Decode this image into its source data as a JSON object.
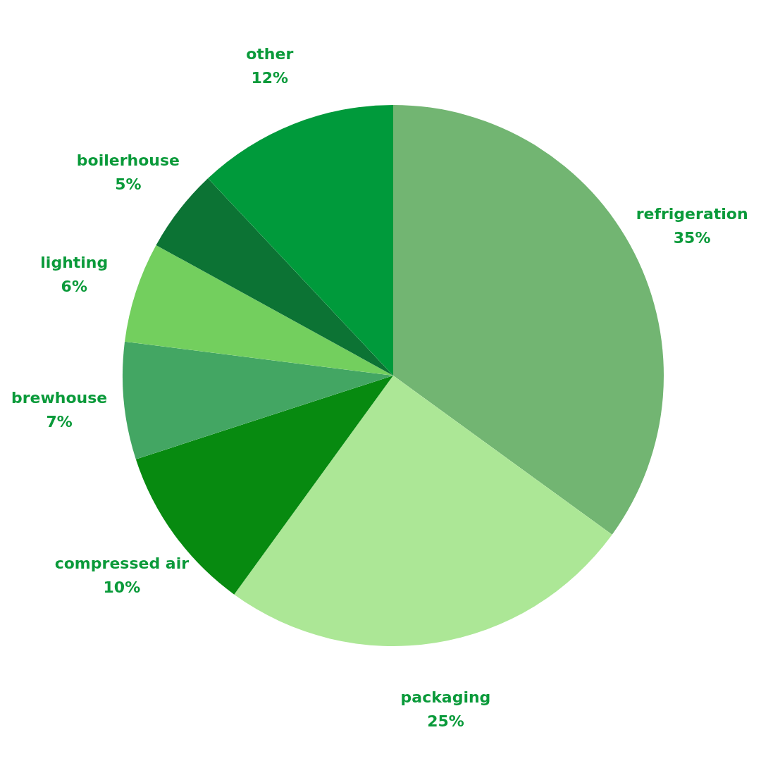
{
  "chart_data": {
    "type": "pie",
    "categories": [
      "refrigeration",
      "packaging",
      "compressed air",
      "brewhouse",
      "lighting",
      "boilerhouse",
      "other"
    ],
    "values": [
      35,
      25,
      10,
      7,
      6,
      5,
      12
    ],
    "colors": [
      "#72b572",
      "#ace796",
      "#078a10",
      "#43a663",
      "#73cf5e",
      "#0c7334",
      "#009a3b"
    ],
    "value_labels": [
      "35%",
      "25%",
      "10%",
      "7%",
      "6%",
      "5%",
      "12%"
    ]
  }
}
